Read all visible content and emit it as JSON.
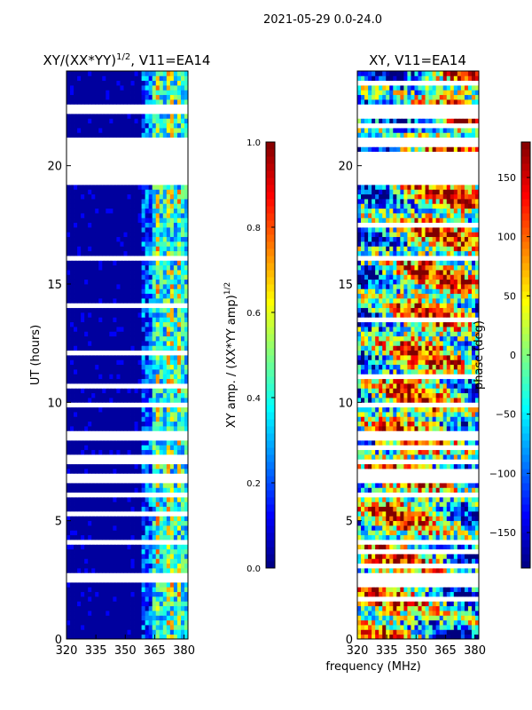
{
  "page_title": "2021-05-29 0.0-24.0",
  "colors": {
    "jet": [
      "#00007f",
      "#0000ff",
      "#007fff",
      "#00ffff",
      "#7fff7f",
      "#ffff00",
      "#ff7f00",
      "#ff0000",
      "#7f0000"
    ],
    "gap": "#ffffff"
  },
  "chart_data": [
    {
      "type": "heatmap",
      "id": "amp",
      "title_main": "XY/(XX*YY)",
      "title_sup": "1/2",
      "title_tail": ", V11=EA14",
      "xlabel": "",
      "ylabel": "UT (hours)",
      "xlim": [
        320,
        382
      ],
      "ylim": [
        0,
        24
      ],
      "xticks": [
        320,
        335,
        350,
        365,
        380
      ],
      "yticks": [
        0,
        5,
        10,
        15,
        20
      ],
      "colorbar": {
        "label": "XY amp. / (XX*YY amp)",
        "label_sup": "1/2",
        "range": [
          0.0,
          1.0
        ],
        "ticks": [
          "0.0",
          "0.2",
          "0.4",
          "0.6",
          "0.8",
          "1.0"
        ]
      },
      "bands": [
        {
          "from": 320,
          "to": 359,
          "level": 0.03
        },
        {
          "from": 359,
          "to": 364,
          "level": 0.2
        },
        {
          "from": 364,
          "to": 382,
          "level": 0.38
        }
      ],
      "hot_channels": [
        367,
        373,
        378
      ]
    },
    {
      "type": "heatmap",
      "id": "phase",
      "title_main": "XY, V11=EA14",
      "title_sup": "",
      "title_tail": "",
      "xlabel": "frequency (MHz)",
      "ylabel": "",
      "xlim": [
        320,
        382
      ],
      "ylim": [
        0,
        24
      ],
      "xticks": [
        320,
        335,
        350,
        365,
        380
      ],
      "yticks": [
        0,
        5,
        10,
        15,
        20
      ],
      "colorbar": {
        "label": "phase (deg)",
        "label_sup": "",
        "range": [
          -180,
          180
        ],
        "ticks": [
          "−150",
          "−100",
          "−50",
          "0",
          "50",
          "100",
          "150"
        ]
      }
    }
  ],
  "gaps_hours": [
    [
      2.5,
      2.8
    ],
    [
      5.9,
      6.1
    ],
    [
      6.6,
      6.9
    ],
    [
      7.5,
      7.7
    ],
    [
      8.4,
      8.7
    ],
    [
      15.9,
      16.1
    ],
    [
      19.3,
      20.6
    ],
    [
      20.9,
      21.1
    ],
    [
      22.1,
      22.5
    ]
  ]
}
